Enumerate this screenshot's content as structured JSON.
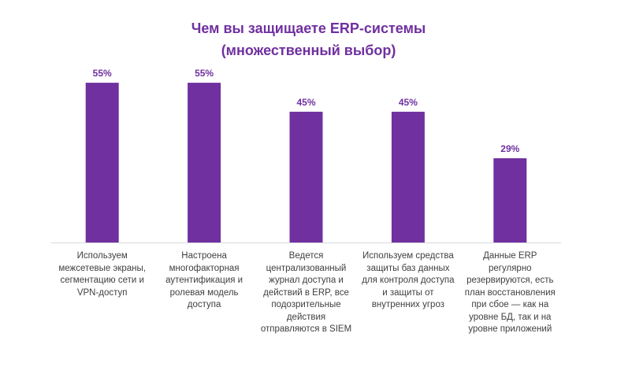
{
  "chart_data": {
    "type": "bar",
    "title_lines": [
      "Чем вы защищаете ERP-системы",
      "(множественный выбор)"
    ],
    "categories": [
      "Используем межсетевые экраны, сегментацию сети и VPN-доступ",
      "Настроена многофакторная аутентификация и ролевая модель доступа",
      "Ведется централизованный журнал доступа и действий в ERP, все подозрительные действия отправляются в SIEM",
      "Используем средства защиты баз данных для контроля доступа и защиты от внутренних угроз",
      "Данные ERP регулярно резервируются, есть план восстановления при сбое — как на уровне БД, так и на уровне приложений"
    ],
    "values": [
      55,
      55,
      45,
      45,
      29
    ],
    "value_labels": [
      "55%",
      "55%",
      "45%",
      "45%",
      "29%"
    ],
    "xlabel": "",
    "ylabel": "",
    "ylim": [
      0,
      65
    ],
    "grid": false,
    "legend": "none",
    "colors": {
      "bar": "#7030a0",
      "title": "#7030a0",
      "data_label": "#7030a0",
      "axis": "#d9d9d9",
      "category_text": "#404040"
    }
  }
}
